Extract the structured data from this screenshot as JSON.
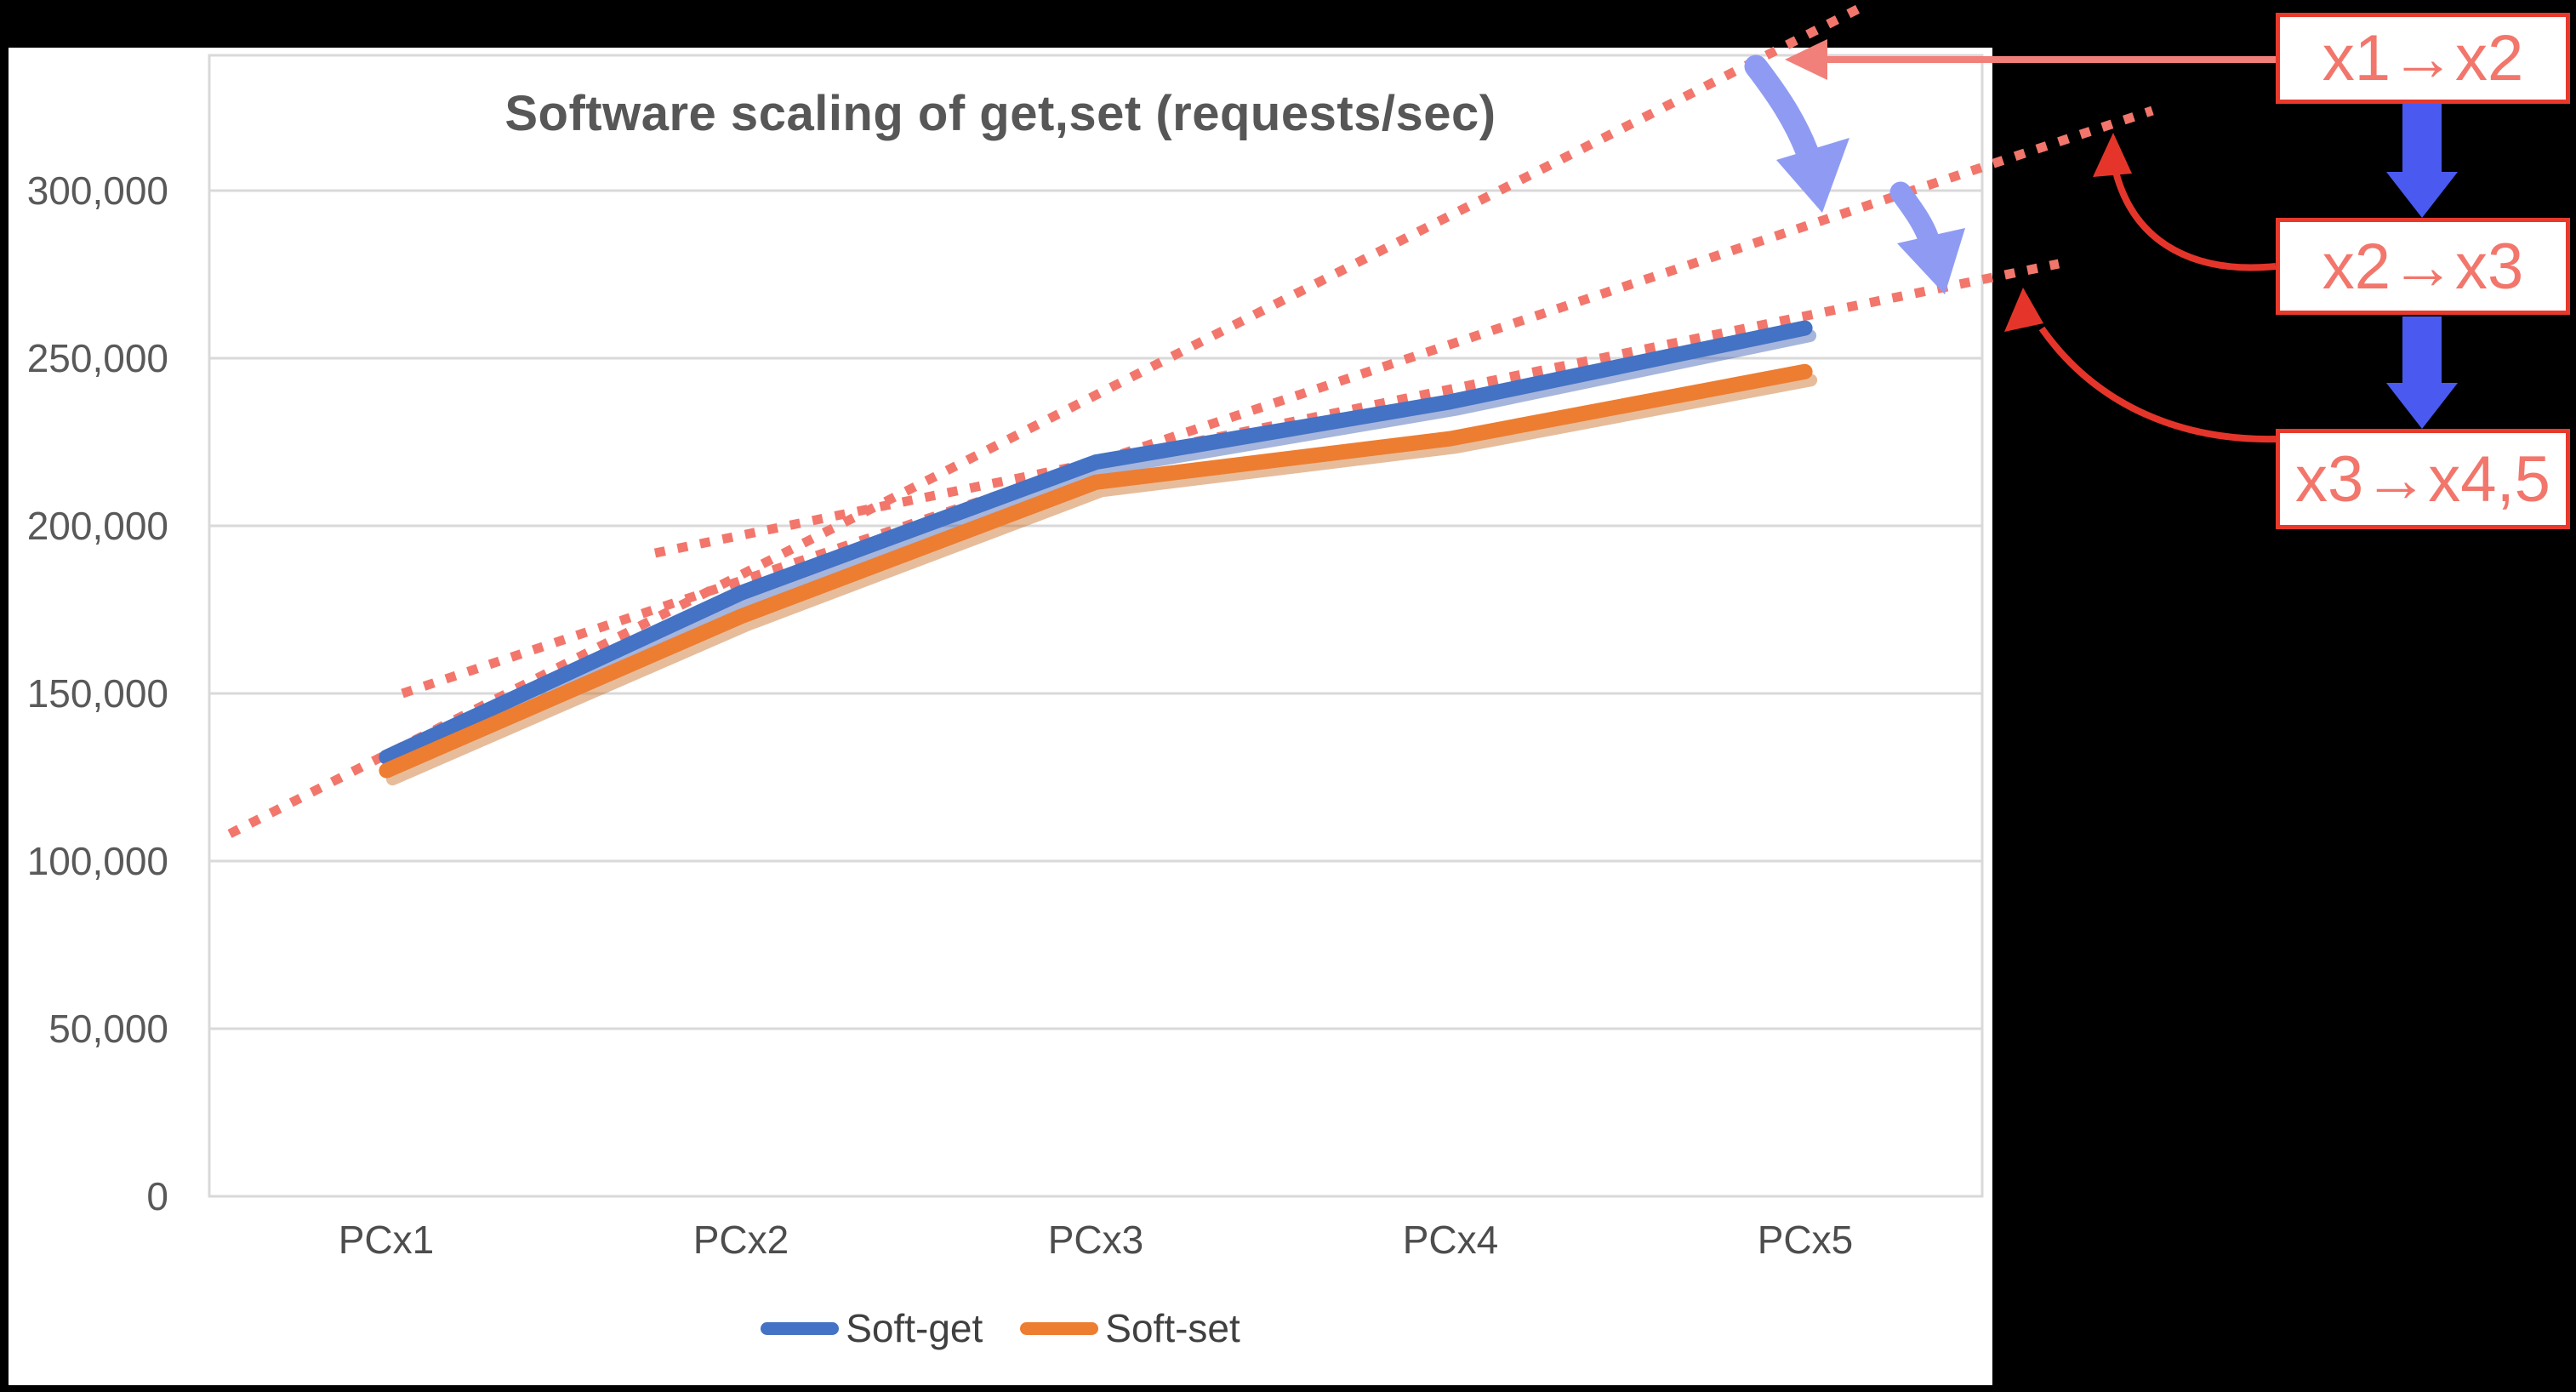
{
  "chart_data": {
    "type": "line",
    "title": "Software scaling of get,set (requests/sec)",
    "categories": [
      "PCx1",
      "PCx2",
      "PCx3",
      "PCx4",
      "PCx5"
    ],
    "series": [
      {
        "name": "Soft-get",
        "color": "#4472C4",
        "values": [
          131000,
          180000,
          219000,
          237000,
          259000
        ]
      },
      {
        "name": "Soft-set",
        "color": "#ED7D31",
        "values": [
          127000,
          173000,
          213000,
          226000,
          246000
        ]
      }
    ],
    "xlabel": "",
    "ylabel": "",
    "ylim": [
      0,
      340000
    ],
    "y_tick_step": 50000,
    "y_tick_labels": [
      "300,000",
      "250,000",
      "200,000",
      "150,000",
      "100,000",
      "50,000",
      "0"
    ],
    "grid": true,
    "legend_position": "bottom"
  },
  "annotations": {
    "trend_labels": [
      {
        "label": "x1→x2",
        "meaning": "dotted extrapolation of the x1→x2 slope"
      },
      {
        "label": "x2→x3",
        "meaning": "dotted extrapolation of the x2→x3 slope"
      },
      {
        "label": "x3→x4,5",
        "meaning": "dotted extrapolation of the x3→x4,5 slope"
      }
    ],
    "dotted_trendline_color": "#F2766B",
    "label_box_border_color": "#E8392B",
    "label_box_text_color": "#F2766B",
    "connector_colors": {
      "first": "#F2807A",
      "second": "#E5352A",
      "third": "#E5352A"
    },
    "drop_arrow_color": "#8F9BF3",
    "flow_arrow_color": "#4A5AF0"
  },
  "style": {
    "background": "#000000",
    "panel_background": "#FFFFFF",
    "gridline_color": "#D9D9D9",
    "title_color": "#575757",
    "axis_text_color": "#595959"
  }
}
